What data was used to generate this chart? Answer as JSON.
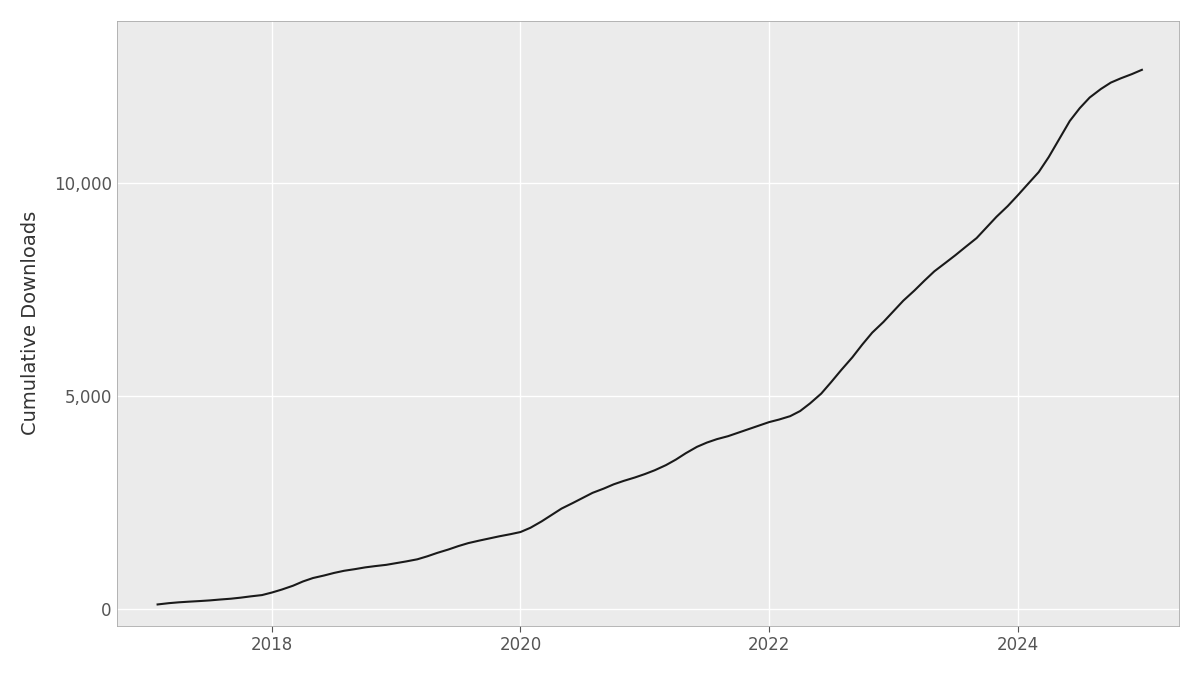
{
  "title": "",
  "ylabel": "Cumulative Downloads",
  "xlabel": "",
  "panel_background_color": "#EBEBEB",
  "outer_background_color": "#FFFFFF",
  "grid_color": "#FFFFFF",
  "line_color": "#1a1a1a",
  "line_width": 1.5,
  "x": [
    2017.08,
    2017.17,
    2017.25,
    2017.33,
    2017.42,
    2017.5,
    2017.58,
    2017.67,
    2017.75,
    2017.83,
    2017.92,
    2018.0,
    2018.08,
    2018.17,
    2018.25,
    2018.33,
    2018.42,
    2018.5,
    2018.58,
    2018.67,
    2018.75,
    2018.83,
    2018.92,
    2019.0,
    2019.08,
    2019.17,
    2019.25,
    2019.33,
    2019.42,
    2019.5,
    2019.58,
    2019.67,
    2019.75,
    2019.83,
    2019.92,
    2020.0,
    2020.08,
    2020.17,
    2020.25,
    2020.33,
    2020.42,
    2020.5,
    2020.58,
    2020.67,
    2020.75,
    2020.83,
    2020.92,
    2021.0,
    2021.08,
    2021.17,
    2021.25,
    2021.33,
    2021.42,
    2021.5,
    2021.58,
    2021.67,
    2021.75,
    2021.83,
    2021.92,
    2022.0,
    2022.08,
    2022.17,
    2022.25,
    2022.33,
    2022.42,
    2022.5,
    2022.58,
    2022.67,
    2022.75,
    2022.83,
    2022.92,
    2023.0,
    2023.08,
    2023.17,
    2023.25,
    2023.33,
    2023.42,
    2023.5,
    2023.58,
    2023.67,
    2023.75,
    2023.83,
    2023.92,
    2024.0,
    2024.08,
    2024.17,
    2024.25,
    2024.33,
    2024.42,
    2024.5,
    2024.58,
    2024.67,
    2024.75,
    2024.83,
    2024.92,
    2025.0
  ],
  "y": [
    100,
    130,
    150,
    165,
    180,
    195,
    215,
    235,
    260,
    290,
    320,
    380,
    450,
    540,
    640,
    720,
    780,
    840,
    890,
    930,
    970,
    1000,
    1030,
    1070,
    1110,
    1160,
    1230,
    1310,
    1390,
    1470,
    1540,
    1600,
    1650,
    1700,
    1750,
    1800,
    1900,
    2050,
    2200,
    2350,
    2480,
    2600,
    2720,
    2820,
    2920,
    3000,
    3080,
    3160,
    3250,
    3370,
    3500,
    3650,
    3800,
    3900,
    3980,
    4050,
    4130,
    4210,
    4300,
    4380,
    4440,
    4520,
    4640,
    4820,
    5050,
    5320,
    5600,
    5900,
    6200,
    6480,
    6730,
    6980,
    7230,
    7470,
    7700,
    7920,
    8120,
    8300,
    8490,
    8700,
    8950,
    9200,
    9450,
    9700,
    9960,
    10250,
    10600,
    11000,
    11450,
    11750,
    12000,
    12200,
    12350,
    12450,
    12550,
    12650
  ],
  "xlim": [
    2016.75,
    2025.3
  ],
  "ylim": [
    -400,
    13800
  ],
  "xticks": [
    2018,
    2020,
    2022,
    2024
  ],
  "yticks": [
    0,
    5000,
    10000
  ],
  "ytick_labels": [
    "0",
    "5,000",
    "10,000"
  ],
  "ylabel_fontsize": 14,
  "tick_fontsize": 12,
  "spine_color": "#AAAAAA",
  "tick_color": "#555555"
}
